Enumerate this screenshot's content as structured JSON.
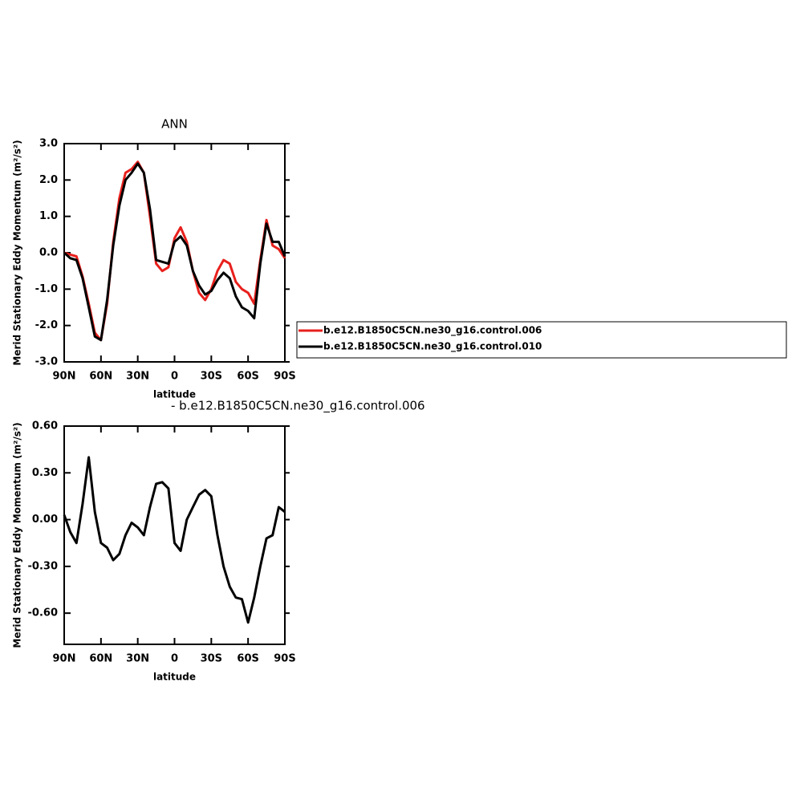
{
  "chart_data": [
    {
      "type": "line",
      "title": "ANN",
      "xlabel": "latitude",
      "ylabel": "Merid Stationary Eddy Momentum (m²/s²)",
      "x": [
        90,
        85,
        80,
        75,
        70,
        65,
        60,
        55,
        50,
        45,
        40,
        35,
        30,
        25,
        20,
        15,
        10,
        5,
        0,
        -5,
        -10,
        -15,
        -20,
        -25,
        -30,
        -35,
        -40,
        -45,
        -50,
        -55,
        -60,
        -65,
        -70,
        -75,
        -80,
        -85,
        -90
      ],
      "xlim": [
        90,
        -90
      ],
      "xticks": [
        {
          "value": 90,
          "label": "90N"
        },
        {
          "value": 60,
          "label": "60N"
        },
        {
          "value": 30,
          "label": "30N"
        },
        0,
        {
          "value": -30,
          "label": "30S"
        },
        {
          "value": -60,
          "label": "60S"
        },
        {
          "value": -90,
          "label": "90S"
        }
      ],
      "ylim": [
        -3,
        3
      ],
      "yticks": [
        {
          "value": 3,
          "label": "3.0"
        },
        {
          "value": 2,
          "label": "2.0"
        },
        {
          "value": 1,
          "label": "1.0"
        },
        {
          "value": 0,
          "label": "0.0"
        },
        {
          "value": -1,
          "label": "-1.0"
        },
        {
          "value": -2,
          "label": "-2.0"
        },
        {
          "value": -3,
          "label": "-3.0"
        }
      ],
      "series": [
        {
          "name": "b.e12.B1850C5CN.ne30_g16.control.006",
          "color": "#e8201c",
          "values": [
            0.0,
            -0.05,
            -0.1,
            -0.65,
            -1.4,
            -2.2,
            -2.4,
            -1.4,
            0.3,
            1.5,
            2.2,
            2.3,
            2.5,
            2.2,
            1.0,
            -0.3,
            -0.5,
            -0.4,
            0.4,
            0.7,
            0.3,
            -0.5,
            -1.1,
            -1.3,
            -1.0,
            -0.5,
            -0.2,
            -0.3,
            -0.8,
            -1.0,
            -1.1,
            -1.4,
            -0.2,
            0.9,
            0.2,
            0.1,
            -0.15
          ]
        },
        {
          "name": "b.e12.B1850C5CN.ne30_g16.control.010",
          "color": "#000000",
          "values": [
            0.0,
            -0.15,
            -0.2,
            -0.7,
            -1.5,
            -2.3,
            -2.4,
            -1.3,
            0.2,
            1.3,
            2.0,
            2.2,
            2.45,
            2.2,
            1.2,
            -0.2,
            -0.25,
            -0.3,
            0.3,
            0.45,
            0.2,
            -0.5,
            -0.9,
            -1.15,
            -1.05,
            -0.75,
            -0.55,
            -0.7,
            -1.2,
            -1.5,
            -1.6,
            -1.8,
            -0.3,
            0.8,
            0.3,
            0.3,
            -0.1
          ]
        }
      ]
    },
    {
      "type": "line",
      "subtitle": "- b.e12.B1850C5CN.ne30_g16.control.006",
      "xlabel": "latitude",
      "ylabel": "Merid Stationary Eddy Momentum (m²/s²)",
      "x": [
        90,
        85,
        80,
        75,
        70,
        65,
        60,
        55,
        50,
        45,
        40,
        35,
        30,
        25,
        20,
        15,
        10,
        5,
        0,
        -5,
        -10,
        -15,
        -20,
        -25,
        -30,
        -35,
        -40,
        -45,
        -50,
        -55,
        -60,
        -65,
        -70,
        -75,
        -80,
        -85,
        -90
      ],
      "xlim": [
        90,
        -90
      ],
      "xticks": [
        {
          "value": 90,
          "label": "90N"
        },
        {
          "value": 60,
          "label": "60N"
        },
        {
          "value": 30,
          "label": "30N"
        },
        0,
        {
          "value": -30,
          "label": "30S"
        },
        {
          "value": -60,
          "label": "60S"
        },
        {
          "value": -90,
          "label": "90S"
        }
      ],
      "ylim": [
        -0.8,
        0.6
      ],
      "yticks": [
        {
          "value": 0.6,
          "label": "0.60"
        },
        {
          "value": 0.3,
          "label": "0.30"
        },
        {
          "value": 0,
          "label": "0.00"
        },
        {
          "value": -0.3,
          "label": "-0.30"
        },
        {
          "value": -0.6,
          "label": "-0.60"
        }
      ],
      "series": [
        {
          "color": "#000000",
          "values": [
            0.03,
            -0.08,
            -0.15,
            0.1,
            0.4,
            0.05,
            -0.15,
            -0.18,
            -0.26,
            -0.22,
            -0.1,
            -0.02,
            -0.05,
            -0.1,
            0.08,
            0.23,
            0.24,
            0.2,
            -0.15,
            -0.2,
            0.0,
            0.08,
            0.16,
            0.19,
            0.15,
            -0.1,
            -0.3,
            -0.43,
            -0.5,
            -0.51,
            -0.66,
            -0.5,
            -0.3,
            -0.12,
            -0.1,
            0.08,
            0.05
          ]
        }
      ]
    }
  ]
}
